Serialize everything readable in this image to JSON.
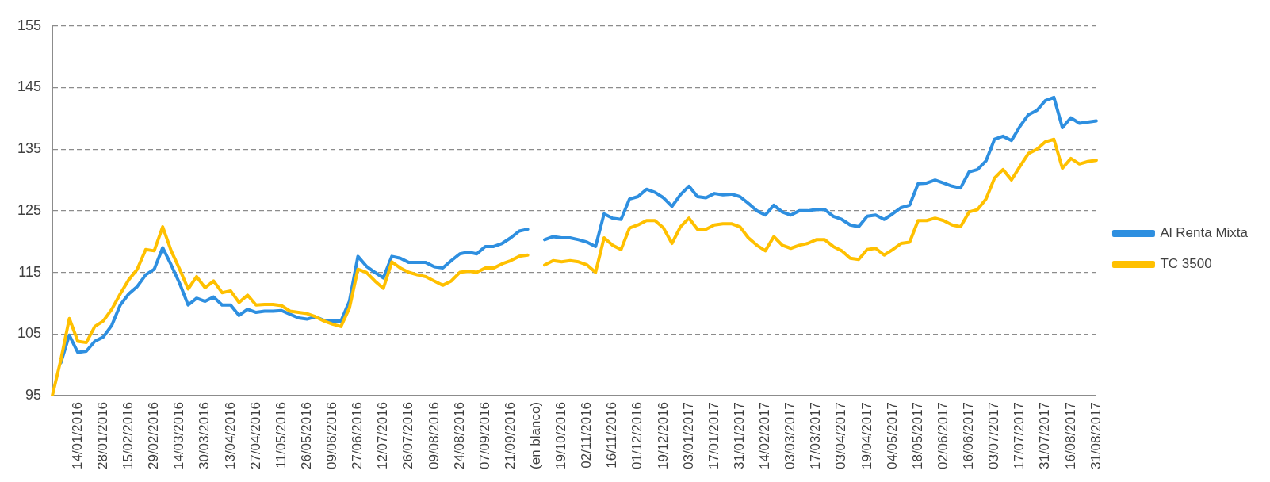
{
  "chart_data": {
    "type": "line",
    "categories": [
      null,
      null,
      null,
      "14/01/2016",
      null,
      null,
      "28/01/2016",
      null,
      null,
      "15/02/2016",
      null,
      null,
      "29/02/2016",
      null,
      null,
      "14/03/2016",
      null,
      null,
      "30/03/2016",
      null,
      null,
      "13/04/2016",
      null,
      null,
      "27/04/2016",
      null,
      null,
      "11/05/2016",
      null,
      null,
      "26/05/2016",
      null,
      null,
      "09/06/2016",
      null,
      null,
      "27/06/2016",
      null,
      null,
      "12/07/2016",
      null,
      null,
      "26/07/2016",
      null,
      null,
      "09/08/2016",
      null,
      null,
      "24/08/2016",
      null,
      null,
      "07/09/2016",
      null,
      null,
      "21/09/2016",
      null,
      null,
      "(en blanco)",
      null,
      null,
      "19/10/2016",
      null,
      null,
      "02/11/2016",
      null,
      null,
      "16/11/2016",
      null,
      null,
      "01/12/2016",
      null,
      null,
      "19/12/2016",
      null,
      null,
      "03/01/2017",
      null,
      null,
      "17/01/2017",
      null,
      null,
      "31/01/2017",
      null,
      null,
      "14/02/2017",
      null,
      null,
      "03/03/2017",
      null,
      null,
      "17/03/2017",
      null,
      null,
      "03/04/2017",
      null,
      null,
      "19/04/2017",
      null,
      null,
      "04/05/2017",
      null,
      null,
      "18/05/2017",
      null,
      null,
      "02/06/2017",
      null,
      null,
      "16/06/2017",
      null,
      null,
      "03/07/2017",
      null,
      null,
      "17/07/2017",
      null,
      null,
      "31/07/2017",
      null,
      null,
      "16/08/2017",
      null,
      null,
      "31/08/2017"
    ],
    "series": [
      {
        "name": "Al Renta Mixta",
        "color": "#2e8fe0",
        "values": [
          null,
          100.3,
          104.8,
          102,
          102.2,
          103.8,
          104.5,
          106.4,
          109.7,
          111.5,
          112.7,
          114.6,
          115.5,
          119,
          116.2,
          113.2,
          109.7,
          110.8,
          110.3,
          111,
          109.7,
          109.7,
          108,
          109,
          108.5,
          108.7,
          108.7,
          108.8,
          108.2,
          107.6,
          107.4,
          107.8,
          107.2,
          107.1,
          107.1,
          110.3,
          117.6,
          116,
          115,
          114.1,
          117.6,
          117.3,
          116.6,
          116.6,
          116.6,
          115.9,
          115.7,
          116.9,
          118,
          118.3,
          118,
          119.2,
          119.2,
          119.7,
          120.6,
          121.7,
          122,
          null,
          120.3,
          120.8,
          120.6,
          120.6,
          120.3,
          119.9,
          119.2,
          124.5,
          123.8,
          123.6,
          126.9,
          127.3,
          128.5,
          128,
          127.1,
          125.7,
          127.6,
          129,
          127.3,
          127.1,
          127.8,
          127.6,
          127.7,
          127.3,
          126.2,
          125,
          124.3,
          125.9,
          124.8,
          124.3,
          125,
          125,
          125.2,
          125.2,
          124.1,
          123.6,
          122.7,
          122.4,
          124.1,
          124.3,
          123.6,
          124.5,
          125.5,
          125.9,
          129.4,
          129.5,
          130,
          129.5,
          129,
          128.7,
          131.3,
          131.7,
          133.1,
          136.6,
          137.1,
          136.4,
          138.7,
          140.6,
          141.3,
          142.9,
          143.4,
          138.5,
          140.1,
          139.2,
          139.4,
          139.6
        ]
      },
      {
        "name": "TC 3500",
        "color": "#ffc000",
        "values": [
          95,
          100.8,
          107.5,
          103.8,
          103.6,
          106.2,
          107.1,
          109,
          111.5,
          113.8,
          115.5,
          118.7,
          118.5,
          122.4,
          118.5,
          115.5,
          112.3,
          114.3,
          112.5,
          113.6,
          111.7,
          112,
          110.1,
          111.3,
          109.7,
          109.8,
          109.8,
          109.6,
          108.7,
          108.5,
          108.3,
          107.8,
          107.1,
          106.6,
          106.2,
          109.2,
          115.5,
          115,
          113.6,
          112.4,
          116.7,
          115.7,
          115,
          114.6,
          114.3,
          113.6,
          112.9,
          113.6,
          115,
          115.2,
          115,
          115.7,
          115.7,
          116.4,
          116.9,
          117.6,
          117.8,
          null,
          116.2,
          116.9,
          116.7,
          116.9,
          116.7,
          116.2,
          115,
          120.6,
          119.4,
          118.7,
          122.2,
          122.7,
          123.4,
          123.4,
          122.2,
          119.7,
          122.4,
          123.8,
          122,
          122,
          122.7,
          122.9,
          122.9,
          122.4,
          120.6,
          119.4,
          118.5,
          120.8,
          119.4,
          118.9,
          119.4,
          119.7,
          120.3,
          120.3,
          119.2,
          118.5,
          117.3,
          117.1,
          118.7,
          118.9,
          117.8,
          118.7,
          119.7,
          119.9,
          123.4,
          123.4,
          123.8,
          123.4,
          122.7,
          122.4,
          124.8,
          125.2,
          126.9,
          130.3,
          131.7,
          130,
          132.2,
          134.3,
          135,
          136.2,
          136.6,
          131.9,
          133.5,
          132.6,
          133,
          133.2
        ]
      }
    ],
    "ylim": [
      95,
      155
    ],
    "yticks": [
      95,
      105,
      115,
      125,
      135,
      145,
      155
    ],
    "grid": "y",
    "legend": "right",
    "marker": "none",
    "line_style": "solid"
  }
}
